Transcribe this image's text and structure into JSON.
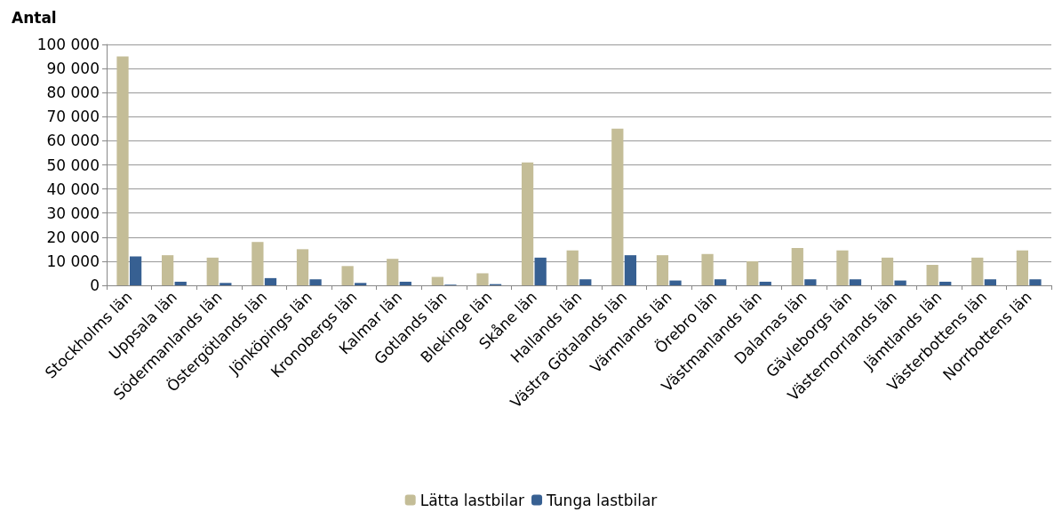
{
  "chart_data": {
    "type": "bar",
    "ylabel": "Antal",
    "categories": [
      "Stockholms län",
      "Uppsala län",
      "Södermanlands län",
      "Östergötlands län",
      "Jönköpings län",
      "Kronobergs län",
      "Kalmar län",
      "Gotlands län",
      "Blekinge län",
      "Skåne län",
      "Hallands län",
      "Västra Götalands län",
      "Värmlands län",
      "Örebro län",
      "Västmanlands län",
      "Dalarnas län",
      "Gävleborgs län",
      "Västernorrlands län",
      "Jämtlands län",
      "Västerbottens län",
      "Norrbottens län"
    ],
    "series": [
      {
        "name": "Lätta lastbilar",
        "color": "#c4bd97",
        "values": [
          95000,
          12500,
          11500,
          18000,
          15000,
          8000,
          11000,
          3500,
          5000,
          51000,
          14500,
          65000,
          12500,
          13000,
          10000,
          15500,
          14500,
          11500,
          8500,
          11500,
          14500
        ]
      },
      {
        "name": "Tunga lastbilar",
        "color": "#376092",
        "values": [
          12000,
          1500,
          1000,
          3000,
          2500,
          1000,
          1500,
          300,
          500,
          11500,
          2500,
          12500,
          2000,
          2500,
          1500,
          2500,
          2500,
          2000,
          1500,
          2500,
          2500
        ]
      }
    ],
    "ylim": [
      0,
      100000
    ],
    "yticks": [
      0,
      {
        "value": 10000,
        "label": "10 000"
      },
      {
        "value": 20000,
        "label": "20 000"
      },
      {
        "value": 30000,
        "label": "30 000"
      },
      {
        "value": 40000,
        "label": "40 000"
      },
      {
        "value": 50000,
        "label": "50 000"
      },
      {
        "value": 60000,
        "label": "60 000"
      },
      {
        "value": 70000,
        "label": "70 000"
      },
      {
        "value": 80000,
        "label": "80 000"
      },
      {
        "value": 90000,
        "label": "90 000"
      },
      {
        "value": 100000,
        "label": "100 000"
      }
    ],
    "grid": "y",
    "legend": "bottom"
  }
}
